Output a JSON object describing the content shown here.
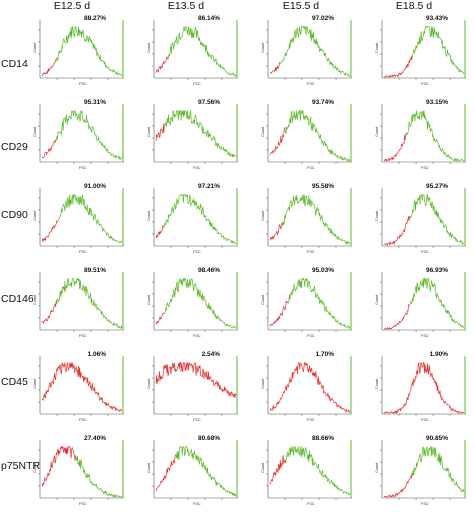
{
  "columns": [
    "E12.5 d",
    "E13.5 d",
    "E15.5 d",
    "E18.5 d"
  ],
  "rows": [
    "CD14",
    "CD29",
    "CD90",
    "CD146",
    "CD45",
    "p75NTR"
  ],
  "axis": {
    "xlabel": "FSC",
    "ylabel": "Count"
  },
  "colors": {
    "positive": "#5cb82a",
    "negative": "#e03030",
    "text": "#111111"
  },
  "chart_data": {
    "type": "histogram-grid",
    "x_axis": "FSC",
    "y_axis": "Count",
    "panels": [
      {
        "row": "CD14",
        "col": "E12.5 d",
        "percent": "88.27%",
        "peak": 0.42,
        "spread": 0.17,
        "red_end": 0.17
      },
      {
        "row": "CD14",
        "col": "E13.5 d",
        "percent": "86.14%",
        "peak": 0.38,
        "spread": 0.18,
        "red_end": 0.16
      },
      {
        "row": "CD14",
        "col": "E15.5 d",
        "percent": "97.02%",
        "peak": 0.4,
        "spread": 0.17,
        "red_end": 0.13
      },
      {
        "row": "CD14",
        "col": "E18.5 d",
        "percent": "93.43%",
        "peak": 0.55,
        "spread": 0.15,
        "red_end": 0.35
      },
      {
        "row": "CD29",
        "col": "E12.5 d",
        "percent": "95.31%",
        "peak": 0.4,
        "spread": 0.18,
        "red_end": 0.18
      },
      {
        "row": "CD29",
        "col": "E13.5 d",
        "percent": "97.56%",
        "peak": 0.3,
        "spread": 0.24,
        "red_end": 0.1
      },
      {
        "row": "CD29",
        "col": "E15.5 d",
        "percent": "93.74%",
        "peak": 0.35,
        "spread": 0.17,
        "red_end": 0.18
      },
      {
        "row": "CD29",
        "col": "E18.5 d",
        "percent": "93.15%",
        "peak": 0.42,
        "spread": 0.13,
        "red_end": 0.28
      },
      {
        "row": "CD90",
        "col": "E12.5 d",
        "percent": "91.00%",
        "peak": 0.4,
        "spread": 0.18,
        "red_end": 0.2
      },
      {
        "row": "CD90",
        "col": "E13.5 d",
        "percent": "97.21%",
        "peak": 0.36,
        "spread": 0.19,
        "red_end": 0.1
      },
      {
        "row": "CD90",
        "col": "E15.5 d",
        "percent": "95.58%",
        "peak": 0.38,
        "spread": 0.18,
        "red_end": 0.15
      },
      {
        "row": "CD90",
        "col": "E18.5 d",
        "percent": "95.27%",
        "peak": 0.48,
        "spread": 0.15,
        "red_end": 0.32
      },
      {
        "row": "CD146",
        "col": "E12.5 d",
        "percent": "89.51%",
        "peak": 0.38,
        "spread": 0.18,
        "red_end": 0.18
      },
      {
        "row": "CD146",
        "col": "E13.5 d",
        "percent": "98.46%",
        "peak": 0.36,
        "spread": 0.18,
        "red_end": 0.1
      },
      {
        "row": "CD146",
        "col": "E15.5 d",
        "percent": "95.03%",
        "peak": 0.4,
        "spread": 0.17,
        "red_end": 0.22
      },
      {
        "row": "CD146",
        "col": "E18.5 d",
        "percent": "96.93%",
        "peak": 0.5,
        "spread": 0.15,
        "red_end": 0.32
      },
      {
        "row": "CD45",
        "col": "E12.5 d",
        "percent": "1.06%",
        "peak": 0.32,
        "spread": 0.2,
        "red_end": 1.0
      },
      {
        "row": "CD45",
        "col": "E13.5 d",
        "percent": "2.54%",
        "peak": 0.3,
        "spread": 0.35,
        "red_end": 1.0
      },
      {
        "row": "CD45",
        "col": "E15.5 d",
        "percent": "1.70%",
        "peak": 0.4,
        "spread": 0.17,
        "red_end": 1.0
      },
      {
        "row": "CD45",
        "col": "E18.5 d",
        "percent": "1.90%",
        "peak": 0.48,
        "spread": 0.12,
        "red_end": 1.0
      },
      {
        "row": "p75NTR",
        "col": "E12.5 d",
        "percent": "27.40%",
        "peak": 0.28,
        "spread": 0.17,
        "red_end": 0.42
      },
      {
        "row": "p75NTR",
        "col": "E13.5 d",
        "percent": "80.68%",
        "peak": 0.36,
        "spread": 0.19,
        "red_end": 0.24
      },
      {
        "row": "p75NTR",
        "col": "E15.5 d",
        "percent": "88.66%",
        "peak": 0.32,
        "spread": 0.21,
        "red_end": 0.2
      },
      {
        "row": "p75NTR",
        "col": "E18.5 d",
        "percent": "90.85%",
        "peak": 0.55,
        "spread": 0.16,
        "red_end": 0.35
      }
    ]
  }
}
